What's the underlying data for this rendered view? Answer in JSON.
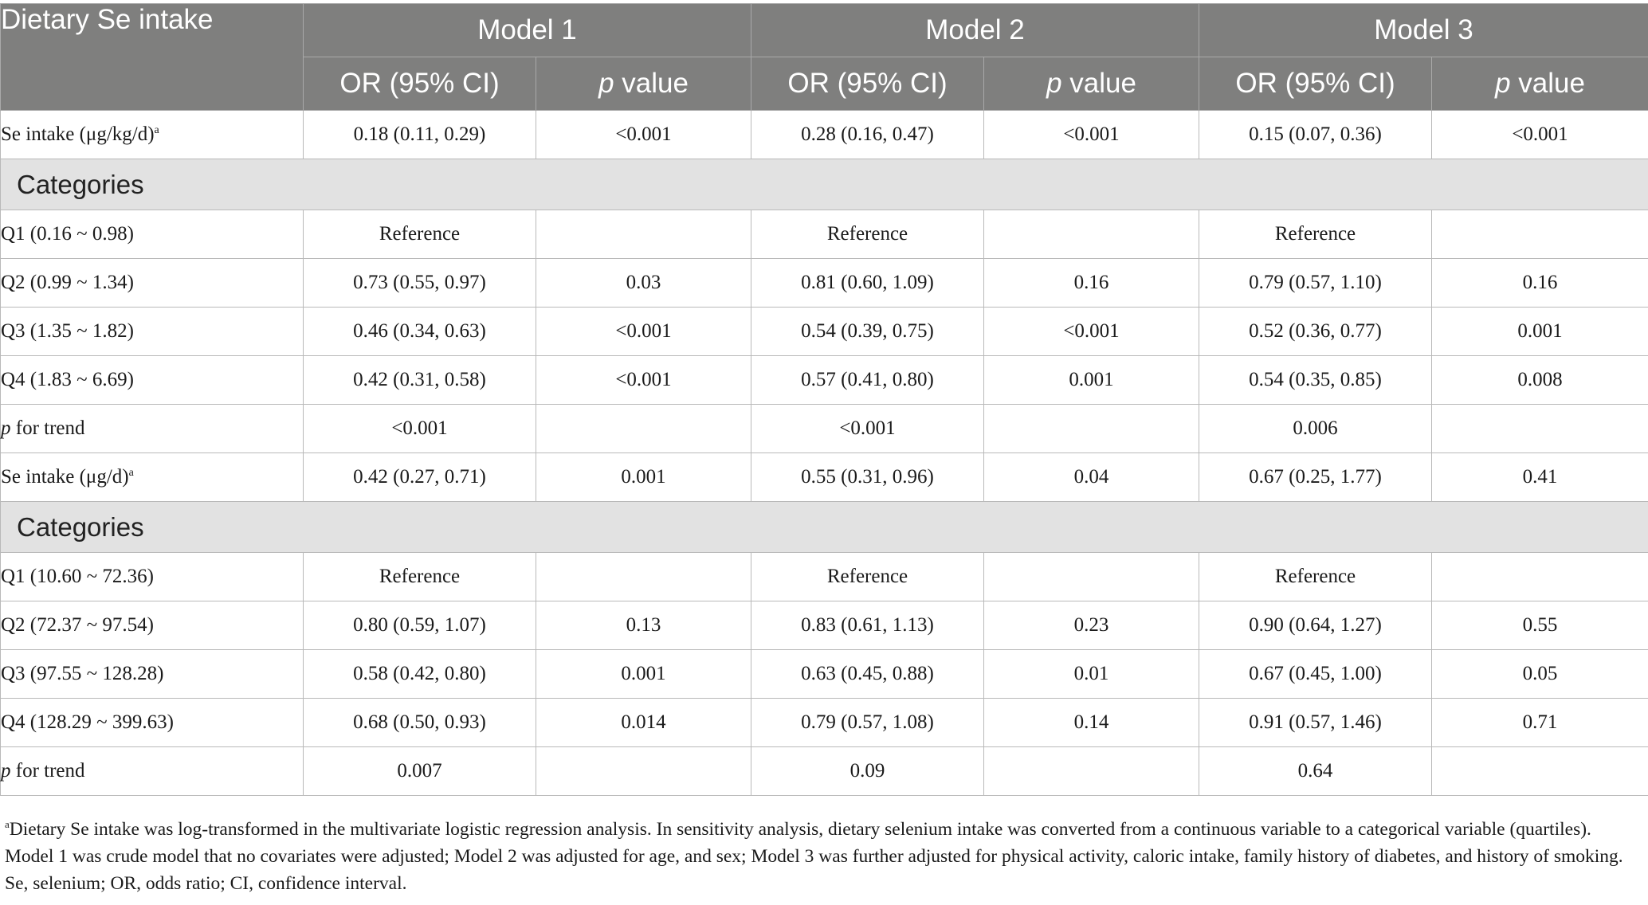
{
  "header": {
    "row_label": "Dietary Se intake",
    "models": [
      "Model 1",
      "Model 2",
      "Model 3"
    ],
    "or_label": "OR (95% CI)",
    "p_italic": "p",
    "p_rest": " value"
  },
  "sections": [
    {
      "main_row": {
        "label": "Se intake (μg/kg/d)",
        "sup": "a",
        "cells": [
          "0.18 (0.11, 0.29)",
          "<0.001",
          "0.28 (0.16, 0.47)",
          "<0.001",
          "0.15 (0.07, 0.36)",
          "<0.001"
        ]
      },
      "category_label": "Categories",
      "rows": [
        {
          "label": "Q1 (0.16 ~ 0.98)",
          "cells": [
            "Reference",
            "",
            "Reference",
            "",
            "Reference",
            ""
          ]
        },
        {
          "label": "Q2 (0.99 ~ 1.34)",
          "cells": [
            "0.73 (0.55, 0.97)",
            "0.03",
            "0.81 (0.60, 1.09)",
            "0.16",
            "0.79 (0.57, 1.10)",
            "0.16"
          ]
        },
        {
          "label": "Q3 (1.35 ~ 1.82)",
          "cells": [
            "0.46 (0.34, 0.63)",
            "<0.001",
            "0.54 (0.39, 0.75)",
            "<0.001",
            "0.52 (0.36, 0.77)",
            "0.001"
          ]
        },
        {
          "label": "Q4 (1.83 ~ 6.69)",
          "cells": [
            "0.42 (0.31, 0.58)",
            "<0.001",
            "0.57 (0.41, 0.80)",
            "0.001",
            "0.54 (0.35, 0.85)",
            "0.008"
          ]
        }
      ],
      "trend": {
        "label_italic": "p",
        "label_rest": " for trend",
        "values": [
          "<0.001",
          "<0.001",
          "0.006"
        ]
      }
    },
    {
      "main_row": {
        "label": "Se intake (μg/d)",
        "sup": "a",
        "cells": [
          "0.42 (0.27, 0.71)",
          "0.001",
          "0.55 (0.31, 0.96)",
          "0.04",
          "0.67 (0.25, 1.77)",
          "0.41"
        ]
      },
      "category_label": "Categories",
      "rows": [
        {
          "label": "Q1 (10.60 ~ 72.36)",
          "cells": [
            "Reference",
            "",
            "Reference",
            "",
            "Reference",
            ""
          ]
        },
        {
          "label": "Q2 (72.37 ~ 97.54)",
          "cells": [
            "0.80 (0.59, 1.07)",
            "0.13",
            "0.83 (0.61, 1.13)",
            "0.23",
            "0.90 (0.64, 1.27)",
            "0.55"
          ]
        },
        {
          "label": "Q3 (97.55 ~ 128.28)",
          "cells": [
            "0.58 (0.42, 0.80)",
            "0.001",
            "0.63 (0.45, 0.88)",
            "0.01",
            "0.67 (0.45, 1.00)",
            "0.05"
          ]
        },
        {
          "label": "Q4 (128.29 ~ 399.63)",
          "cells": [
            "0.68 (0.50, 0.93)",
            "0.014",
            "0.79 (0.57, 1.08)",
            "0.14",
            "0.91 (0.57, 1.46)",
            "0.71"
          ]
        }
      ],
      "trend": {
        "label_italic": "p",
        "label_rest": " for trend",
        "values": [
          "0.007",
          "0.09",
          "0.64"
        ]
      }
    }
  ],
  "footnote": {
    "sup": "a",
    "text": "Dietary Se intake was log-transformed in the multivariate logistic regression analysis. In sensitivity analysis, dietary selenium intake was converted from a continuous variable to a categorical variable (quartiles). Model 1 was crude model that no covariates were adjusted; Model 2 was adjusted for age, and sex; Model 3 was further adjusted for physical activity, caloric intake, family history of diabetes, and history of smoking. Se, selenium; OR, odds ratio; CI, confidence interval."
  }
}
